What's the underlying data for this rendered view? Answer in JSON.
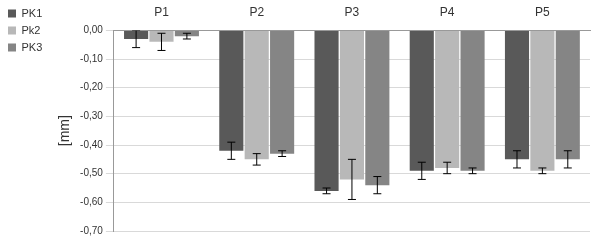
{
  "chart_data": {
    "type": "bar",
    "y_label": "[mm]",
    "categories": [
      "P1",
      "P2",
      "P3",
      "P4",
      "P5"
    ],
    "series": [
      {
        "name": "PK1",
        "color": "#595959",
        "values": [
          -0.03,
          -0.42,
          -0.56,
          -0.49,
          -0.45
        ],
        "errors": [
          0.03,
          0.03,
          0.01,
          0.03,
          0.03
        ]
      },
      {
        "name": "Pk2",
        "color": "#b8b8b8",
        "values": [
          -0.04,
          -0.45,
          -0.52,
          -0.48,
          -0.49
        ],
        "errors": [
          0.03,
          0.02,
          0.07,
          0.02,
          0.01
        ]
      },
      {
        "name": "PK3",
        "color": "#858585",
        "values": [
          -0.02,
          -0.43,
          -0.54,
          -0.49,
          -0.45
        ],
        "errors": [
          0.01,
          0.01,
          0.03,
          0.01,
          0.03
        ]
      }
    ],
    "ylim": [
      -0.7,
      0.0
    ],
    "yticks": [
      {
        "value": 0.0,
        "label": "0,00"
      },
      {
        "value": -0.1,
        "label": "-0,10"
      },
      {
        "value": -0.2,
        "label": "-0,20"
      },
      {
        "value": -0.3,
        "label": "-0,30"
      },
      {
        "value": -0.4,
        "label": "-0,40"
      },
      {
        "value": -0.5,
        "label": "-0,50"
      },
      {
        "value": -0.6,
        "label": "-0,60"
      },
      {
        "value": -0.7,
        "label": "-0,70"
      }
    ],
    "grid": true,
    "legend": "left"
  }
}
